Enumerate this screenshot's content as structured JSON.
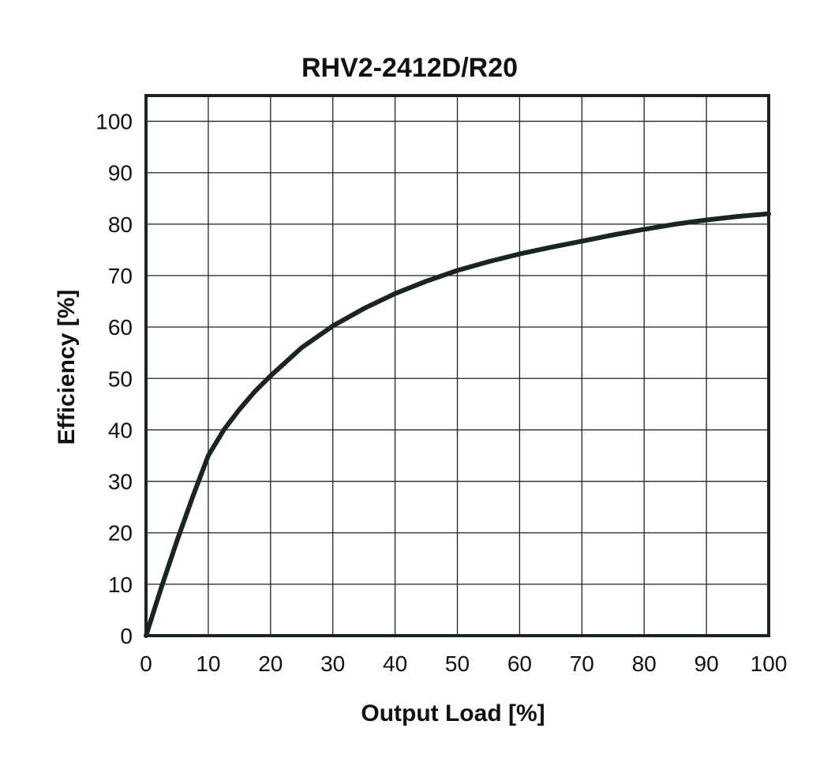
{
  "chart_data": {
    "type": "line",
    "title": "RHV2-2412D/R20",
    "xlabel": "Output Load [%]",
    "ylabel": "Efficiency [%]",
    "xlim": [
      0,
      100
    ],
    "ylim": [
      0,
      105
    ],
    "x_ticks": [
      "0",
      "10",
      "20",
      "30",
      "40",
      "50",
      "60",
      "70",
      "80",
      "90",
      "100"
    ],
    "y_ticks": [
      "0",
      "10",
      "20",
      "30",
      "40",
      "50",
      "60",
      "70",
      "80",
      "90",
      "100"
    ],
    "grid": true,
    "series": [
      {
        "color": "#1a2520",
        "x": [
          0,
          2.5,
          5,
          7.5,
          10,
          12.5,
          15,
          17.5,
          20,
          25,
          30,
          35,
          40,
          45,
          50,
          55,
          60,
          65,
          70,
          75,
          80,
          85,
          90,
          95,
          100
        ],
        "y": [
          0,
          9.5,
          18.5,
          27,
          35,
          40,
          44,
          47.5,
          50.5,
          56,
          60.2,
          63.6,
          66.5,
          68.9,
          71,
          72.7,
          74.2,
          75.5,
          76.7,
          77.9,
          79,
          80,
          80.8,
          81.5,
          82
        ]
      }
    ]
  }
}
